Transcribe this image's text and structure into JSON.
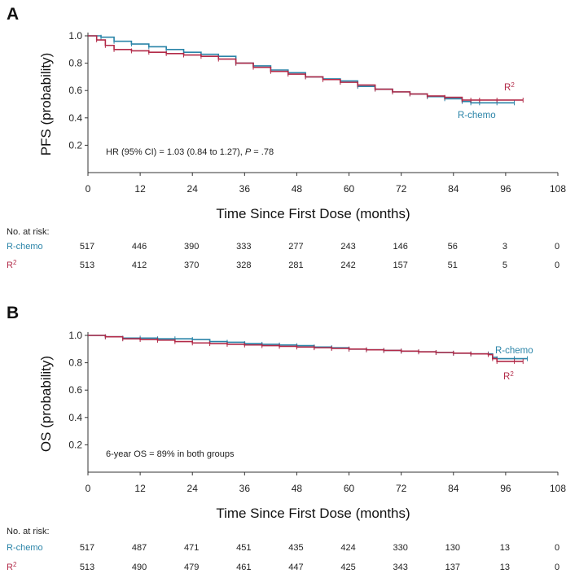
{
  "colors": {
    "r_chemo": "#2a84a8",
    "r2": "#b22a48",
    "axis": "#333333"
  },
  "chart_data": [
    {
      "panel": "A",
      "type": "line",
      "ylabel": "PFS (probability)",
      "xlabel": "Time Since First Dose (months)",
      "xlim": [
        0,
        108
      ],
      "ylim": [
        0,
        1.0
      ],
      "x_ticks": [
        "0",
        "12",
        "24",
        "36",
        "48",
        "60",
        "72",
        "84",
        "96",
        "108"
      ],
      "y_ticks": [
        "1.0",
        "0.8",
        "0.6",
        "0.4",
        "0.2"
      ],
      "annotation_pre": "HR (95% CI) = 1.03 (0.84 to 1.27), ",
      "annotation_p": "P",
      "annotation_post": " = .78",
      "series": [
        {
          "name": "R-chemo",
          "label": "R-chemo",
          "color_key": "r_chemo",
          "x": [
            0,
            3,
            6,
            10,
            14,
            18,
            22,
            26,
            30,
            34,
            38,
            42,
            46,
            50,
            54,
            58,
            62,
            66,
            70,
            74,
            78,
            82,
            86,
            88,
            90,
            94,
            98
          ],
          "y": [
            1.0,
            0.99,
            0.96,
            0.94,
            0.92,
            0.9,
            0.88,
            0.865,
            0.85,
            0.8,
            0.78,
            0.75,
            0.73,
            0.7,
            0.685,
            0.67,
            0.63,
            0.61,
            0.59,
            0.575,
            0.555,
            0.54,
            0.52,
            0.51,
            0.51,
            0.51,
            0.51
          ]
        },
        {
          "name": "R2",
          "label": "R",
          "label_sup": "2",
          "color_key": "r2",
          "x": [
            0,
            2,
            4,
            6,
            10,
            14,
            18,
            22,
            26,
            30,
            34,
            38,
            42,
            46,
            50,
            54,
            58,
            62,
            66,
            70,
            74,
            78,
            82,
            86,
            88,
            90,
            94,
            100
          ],
          "y": [
            1.0,
            0.97,
            0.93,
            0.9,
            0.89,
            0.88,
            0.87,
            0.86,
            0.85,
            0.83,
            0.8,
            0.77,
            0.74,
            0.72,
            0.7,
            0.68,
            0.66,
            0.64,
            0.61,
            0.59,
            0.575,
            0.56,
            0.55,
            0.53,
            0.53,
            0.53,
            0.53,
            0.53
          ]
        }
      ],
      "risk_table": {
        "header": "No. at risk:",
        "rows": [
          {
            "name": "R-chemo",
            "label": "R-chemo",
            "color_key": "r_chemo",
            "values": [
              "517",
              "446",
              "390",
              "333",
              "277",
              "243",
              "146",
              "56",
              "3",
              "0"
            ]
          },
          {
            "name": "R2",
            "label": "R",
            "label_sup": "2",
            "color_key": "r2",
            "values": [
              "513",
              "412",
              "370",
              "328",
              "281",
              "242",
              "157",
              "51",
              "5",
              "0"
            ]
          }
        ]
      }
    },
    {
      "panel": "B",
      "type": "line",
      "ylabel": "OS (probability)",
      "xlabel": "Time Since First Dose (months)",
      "xlim": [
        0,
        108
      ],
      "ylim": [
        0,
        1.0
      ],
      "x_ticks": [
        "0",
        "12",
        "24",
        "36",
        "48",
        "60",
        "72",
        "84",
        "96",
        "108"
      ],
      "y_ticks": [
        "1.0",
        "0.8",
        "0.6",
        "0.4",
        "0.2"
      ],
      "annotation_pre": "6-year OS = 89% in both groups",
      "annotation_p": "",
      "annotation_post": "",
      "series": [
        {
          "name": "R-chemo",
          "label": "R-chemo",
          "color_key": "r_chemo",
          "x": [
            0,
            4,
            8,
            12,
            16,
            20,
            24,
            28,
            32,
            36,
            40,
            44,
            48,
            52,
            56,
            60,
            64,
            68,
            72,
            76,
            80,
            84,
            88,
            92,
            93,
            94,
            98,
            101
          ],
          "y": [
            1.0,
            0.99,
            0.98,
            0.98,
            0.975,
            0.975,
            0.97,
            0.955,
            0.95,
            0.94,
            0.935,
            0.93,
            0.925,
            0.915,
            0.91,
            0.9,
            0.895,
            0.89,
            0.885,
            0.88,
            0.875,
            0.87,
            0.865,
            0.865,
            0.84,
            0.83,
            0.83,
            0.83
          ]
        },
        {
          "name": "R2",
          "label": "R",
          "label_sup": "2",
          "color_key": "r2",
          "x": [
            0,
            4,
            8,
            12,
            16,
            20,
            24,
            28,
            32,
            36,
            40,
            44,
            48,
            52,
            56,
            60,
            64,
            68,
            72,
            76,
            80,
            84,
            88,
            92,
            93,
            94,
            98,
            100
          ],
          "y": [
            1.0,
            0.99,
            0.975,
            0.97,
            0.965,
            0.955,
            0.945,
            0.94,
            0.935,
            0.93,
            0.925,
            0.92,
            0.915,
            0.91,
            0.905,
            0.9,
            0.895,
            0.89,
            0.885,
            0.88,
            0.875,
            0.87,
            0.865,
            0.86,
            0.83,
            0.81,
            0.81,
            0.81
          ]
        }
      ],
      "risk_table": {
        "header": "No. at risk:",
        "rows": [
          {
            "name": "R-chemo",
            "label": "R-chemo",
            "color_key": "r_chemo",
            "values": [
              "517",
              "487",
              "471",
              "451",
              "435",
              "424",
              "330",
              "130",
              "13",
              "0"
            ]
          },
          {
            "name": "R2",
            "label": "R",
            "label_sup": "2",
            "color_key": "r2",
            "values": [
              "513",
              "490",
              "479",
              "461",
              "447",
              "425",
              "343",
              "137",
              "13",
              "0"
            ]
          }
        ]
      }
    }
  ]
}
